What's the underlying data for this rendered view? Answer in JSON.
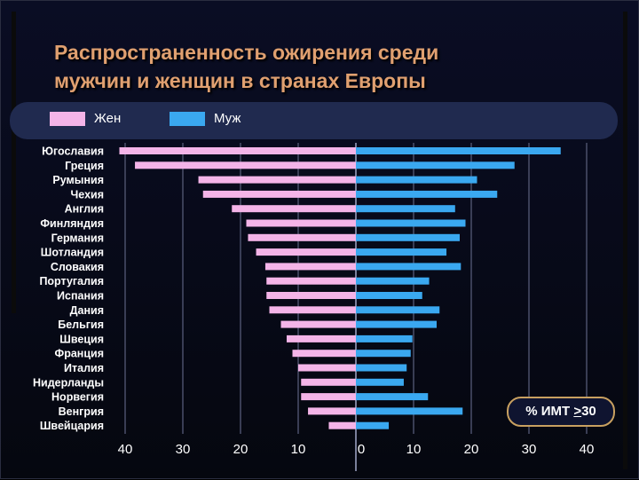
{
  "title": {
    "line1": "Распространенность ожирения среди",
    "line2": "мужчин и женщин в странах Европы"
  },
  "legend": {
    "women": {
      "label": "Жен",
      "color": "#f4b4e8"
    },
    "men": {
      "label": "Муж",
      "color": "#3aa8f0"
    }
  },
  "bmi_box": {
    "prefix": "% ИМТ ",
    "sign": ">",
    "value": "30"
  },
  "colors": {
    "women_bar": "#f4b4e8",
    "men_bar": "#3aa8f0",
    "title": "#e0a070",
    "legend_band": "#202a4f",
    "bmi_box_border": "#c8a060"
  },
  "chart_data": {
    "type": "bar",
    "orientation": "horizontal-diverging",
    "categories": [
      "Югославия",
      "Греция",
      "Румыния",
      "Чехия",
      "Англия",
      "Финляндия",
      "Германия",
      "Шотландия",
      "Словакия",
      "Португалия",
      "Испания",
      "Дания",
      "Бельгия",
      "Швеция",
      "Франция",
      "Италия",
      "Нидерланды",
      "Норвегия",
      "Венгрия",
      "Швейцария"
    ],
    "series": [
      {
        "name": "Жен",
        "side": "left",
        "values": [
          41,
          38.3,
          27.3,
          26.5,
          21.5,
          19,
          18.7,
          17.3,
          15.7,
          15.5,
          15.5,
          15,
          13,
          12,
          11,
          10,
          9.5,
          9.5,
          8.3,
          4.7
        ]
      },
      {
        "name": "Муж",
        "side": "right",
        "values": [
          35.5,
          27.5,
          21,
          24.5,
          17.2,
          19,
          18,
          15.7,
          18.2,
          12.7,
          11.5,
          14.5,
          14,
          9.8,
          9.5,
          8.8,
          8.3,
          12.5,
          18.5,
          5.7
        ]
      }
    ],
    "x_ticks_left": [
      "40",
      "30",
      "20",
      "10"
    ],
    "x_tick_center": "0",
    "x_ticks_right": [
      "10",
      "20",
      "30",
      "40"
    ],
    "xlim": [
      -40,
      40
    ],
    "grid": true
  }
}
